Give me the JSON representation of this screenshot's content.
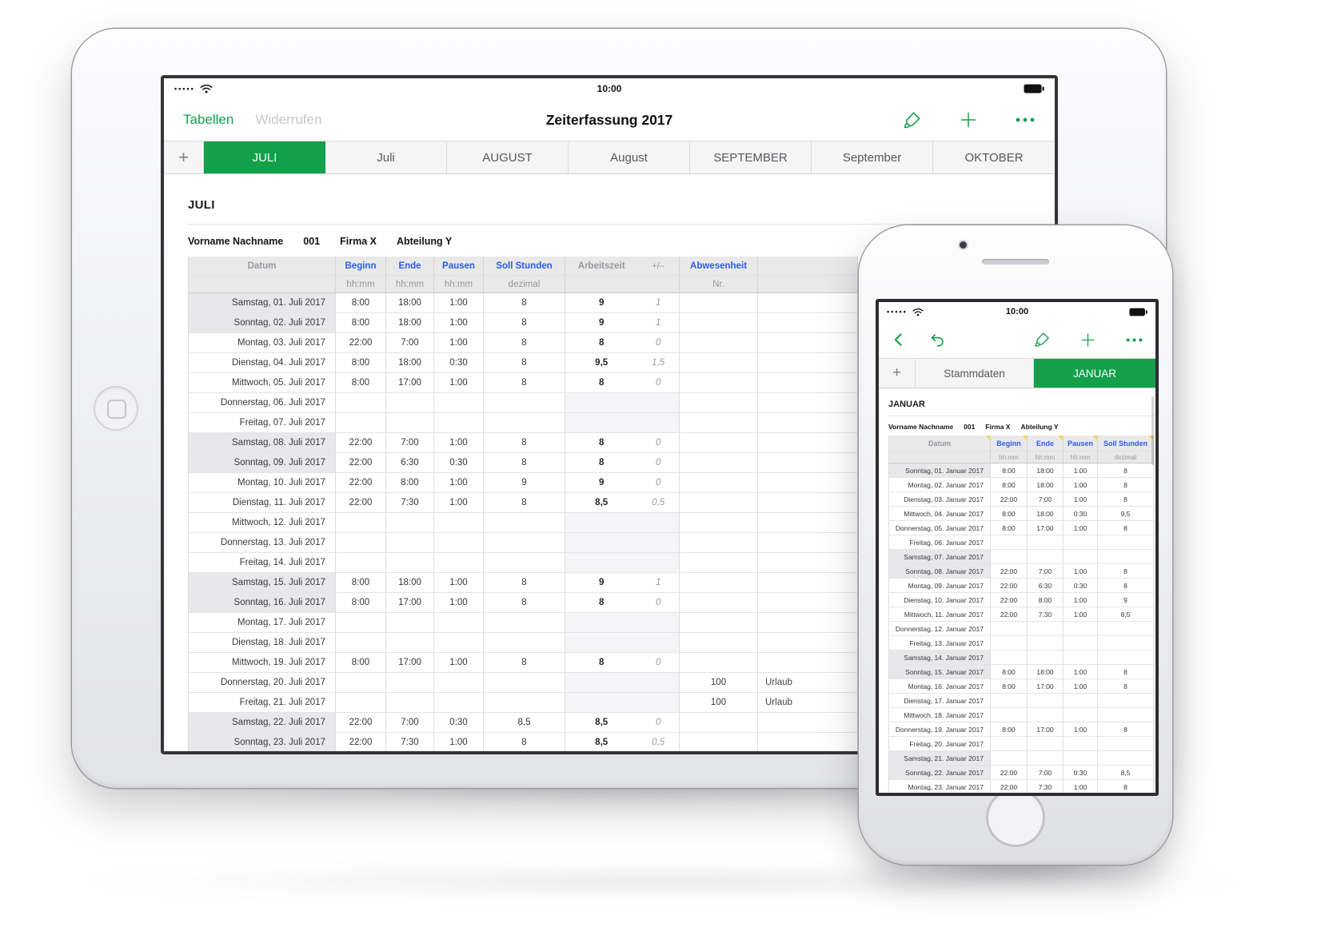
{
  "colors": {
    "accent_green": "#13a04b",
    "header_blue": "#2e5ce6",
    "selected_tab_bg": "#13a04b"
  },
  "ipad": {
    "status": {
      "time": "10:00",
      "signal_dots": "•••••"
    },
    "nav": {
      "back_label": "Tabellen",
      "undo_label": "Widerrufen",
      "title": "Zeiterfassung 2017"
    },
    "tabs": [
      {
        "type": "add",
        "label": "+"
      },
      {
        "label": "JULI",
        "selected": true
      },
      {
        "label": "Juli"
      },
      {
        "label": "AUGUST"
      },
      {
        "label": "August"
      },
      {
        "label": "SEPTEMBER"
      },
      {
        "label": "September"
      },
      {
        "label": "OKTOBER",
        "last": true
      }
    ],
    "sheet_title": "JULI",
    "info": [
      "Vorname Nachname",
      "001",
      "Firma X",
      "Abteilung Y"
    ],
    "table": {
      "headers": {
        "datum": "Datum",
        "beginn": "Beginn",
        "ende": "Ende",
        "pausen": "Pausen",
        "soll": "Soll Stunden",
        "arbeitszeit": "Arbeitszeit",
        "plusminus": "+/–",
        "abwesenheit": "Abwesenheit",
        "note": ""
      },
      "subheaders": {
        "datum": "",
        "beginn": "hh:mm",
        "ende": "hh:mm",
        "pausen": "hh:mm",
        "soll": "dezimal",
        "arbeitszeit": "",
        "abwesenheit": "Nr.",
        "note": ""
      },
      "rows": [
        [
          "Samstag, 01. Juli 2017",
          "8:00",
          "18:00",
          "1:00",
          "8",
          "9",
          "1",
          "",
          ""
        ],
        [
          "Sonntag, 02. Juli 2017",
          "8:00",
          "18:00",
          "1:00",
          "8",
          "9",
          "1",
          "",
          ""
        ],
        [
          "Montag, 03. Juli 2017",
          "22:00",
          "7:00",
          "1:00",
          "8",
          "8",
          "0",
          "",
          ""
        ],
        [
          "Dienstag, 04. Juli 2017",
          "8:00",
          "18:00",
          "0:30",
          "8",
          "9,5",
          "1,5",
          "",
          ""
        ],
        [
          "Mittwoch, 05. Juli 2017",
          "8:00",
          "17:00",
          "1:00",
          "8",
          "8",
          "0",
          "",
          ""
        ],
        [
          "Donnerstag, 06. Juli 2017",
          "",
          "",
          "",
          "",
          "",
          "",
          "",
          ""
        ],
        [
          "Freitag, 07. Juli 2017",
          "",
          "",
          "",
          "",
          "",
          "",
          "",
          ""
        ],
        [
          "Samstag, 08. Juli 2017",
          "22:00",
          "7:00",
          "1:00",
          "8",
          "8",
          "0",
          "",
          ""
        ],
        [
          "Sonntag, 09. Juli 2017",
          "22:00",
          "6:30",
          "0:30",
          "8",
          "8",
          "0",
          "",
          ""
        ],
        [
          "Montag, 10. Juli 2017",
          "22:00",
          "8:00",
          "1:00",
          "9",
          "9",
          "0",
          "",
          ""
        ],
        [
          "Dienstag, 11. Juli 2017",
          "22:00",
          "7:30",
          "1:00",
          "8",
          "8,5",
          "0,5",
          "",
          ""
        ],
        [
          "Mittwoch, 12. Juli 2017",
          "",
          "",
          "",
          "",
          "",
          "",
          "",
          ""
        ],
        [
          "Donnerstag, 13. Juli 2017",
          "",
          "",
          "",
          "",
          "",
          "",
          "",
          ""
        ],
        [
          "Freitag, 14. Juli 2017",
          "",
          "",
          "",
          "",
          "",
          "",
          "",
          ""
        ],
        [
          "Samstag, 15. Juli 2017",
          "8:00",
          "18:00",
          "1:00",
          "8",
          "9",
          "1",
          "",
          ""
        ],
        [
          "Sonntag, 16. Juli 2017",
          "8:00",
          "17:00",
          "1:00",
          "8",
          "8",
          "0",
          "",
          ""
        ],
        [
          "Montag, 17. Juli 2017",
          "",
          "",
          "",
          "",
          "",
          "",
          "",
          ""
        ],
        [
          "Dienstag, 18. Juli 2017",
          "",
          "",
          "",
          "",
          "",
          "",
          "",
          ""
        ],
        [
          "Mittwoch, 19. Juli 2017",
          "8:00",
          "17:00",
          "1:00",
          "8",
          "8",
          "0",
          "",
          ""
        ],
        [
          "Donnerstag, 20. Juli 2017",
          "",
          "",
          "",
          "",
          "",
          "",
          "100",
          "Urlaub"
        ],
        [
          "Freitag, 21. Juli 2017",
          "",
          "",
          "",
          "",
          "",
          "",
          "100",
          "Urlaub"
        ],
        [
          "Samstag, 22. Juli 2017",
          "22:00",
          "7:00",
          "0:30",
          "8,5",
          "8,5",
          "0",
          "",
          ""
        ],
        [
          "Sonntag, 23. Juli 2017",
          "22:00",
          "7:30",
          "1:00",
          "8",
          "8,5",
          "0,5",
          "",
          ""
        ]
      ]
    }
  },
  "iphone": {
    "status": {
      "time": "10:00",
      "signal_dots": "•••••"
    },
    "tabs": [
      {
        "type": "add",
        "label": "+"
      },
      {
        "label": "Stammdaten"
      },
      {
        "label": "JANUAR",
        "selected": true,
        "last": true
      }
    ],
    "sheet_title": "JANUAR",
    "info": [
      "Vorname Nachname",
      "001",
      "Firma X",
      "Abteilung Y"
    ],
    "table": {
      "headers": {
        "datum": "Datum",
        "beginn": "Beginn",
        "ende": "Ende",
        "pausen": "Pausen",
        "soll": "Soll Stunden"
      },
      "subheaders": {
        "datum": "",
        "beginn": "hh:mm",
        "ende": "hh:mm",
        "pausen": "hh:mm",
        "soll": "dezimal"
      },
      "rows": [
        [
          "Sonntag, 01. Januar 2017",
          "8:00",
          "18:00",
          "1:00",
          "8"
        ],
        [
          "Montag, 02. Januar 2017",
          "8:00",
          "18:00",
          "1:00",
          "8"
        ],
        [
          "Dienstag, 03. Januar 2017",
          "22:00",
          "7:00",
          "1:00",
          "8"
        ],
        [
          "Mittwoch, 04. Januar 2017",
          "8:00",
          "18:00",
          "0:30",
          "9,5"
        ],
        [
          "Donnerstag, 05. Januar 2017",
          "8:00",
          "17:00",
          "1:00",
          "8"
        ],
        [
          "Freitag, 06. Januar 2017",
          "",
          "",
          "",
          ""
        ],
        [
          "Samstag, 07. Januar 2017",
          "",
          "",
          "",
          ""
        ],
        [
          "Sonntag, 08. Januar 2017",
          "22:00",
          "7:00",
          "1:00",
          "8"
        ],
        [
          "Montag, 09. Januar 2017",
          "22:00",
          "6:30",
          "0:30",
          "8"
        ],
        [
          "Dienstag, 10. Januar 2017",
          "22:00",
          "8:00",
          "1:00",
          "9"
        ],
        [
          "Mittwoch, 11. Januar 2017",
          "22:00",
          "7:30",
          "1:00",
          "8,5"
        ],
        [
          "Donnerstag, 12. Januar 2017",
          "",
          "",
          "",
          ""
        ],
        [
          "Freitag, 13. Januar 2017",
          "",
          "",
          "",
          ""
        ],
        [
          "Samstag, 14. Januar 2017",
          "",
          "",
          "",
          ""
        ],
        [
          "Sonntag, 15. Januar 2017",
          "8:00",
          "18:00",
          "1:00",
          "8"
        ],
        [
          "Montag, 16. Januar 2017",
          "8:00",
          "17:00",
          "1:00",
          "8"
        ],
        [
          "Dienstag, 17. Januar 2017",
          "",
          "",
          "",
          ""
        ],
        [
          "Mittwoch, 18. Januar 2017",
          "",
          "",
          "",
          ""
        ],
        [
          "Donnerstag, 19. Januar 2017",
          "8:00",
          "17:00",
          "1:00",
          "8"
        ],
        [
          "Freitag, 20. Januar 2017",
          "",
          "",
          "",
          ""
        ],
        [
          "Samstag, 21. Januar 2017",
          "",
          "",
          "",
          ""
        ],
        [
          "Sonntag, 22. Januar 2017",
          "22:00",
          "7:00",
          "0:30",
          "8,5"
        ],
        [
          "Montag, 23. Januar 2017",
          "22:00",
          "7:30",
          "1:00",
          "8"
        ]
      ]
    }
  }
}
